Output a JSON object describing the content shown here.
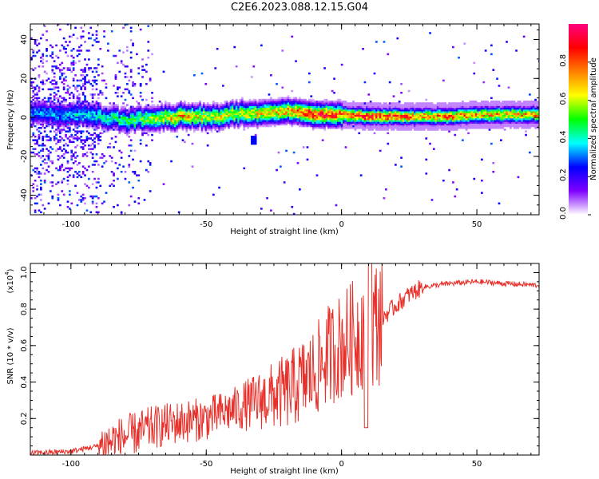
{
  "title": "C2E6.2023.088.12.15.G04",
  "colors": {
    "snr_line": "#e8302a",
    "axis": "#000000",
    "spectrogram_background": "#ffffff"
  },
  "chart_data": [
    {
      "type": "heatmap",
      "name": "spectrogram",
      "title": "",
      "xlabel": "Height of straight line (km)",
      "ylabel": "Frequency (Hz)",
      "xlim": [
        -115,
        73
      ],
      "ylim": [
        -50,
        48
      ],
      "xticks": [
        -100,
        -50,
        0,
        50
      ],
      "yticks": [
        -40,
        -20,
        0,
        20,
        40
      ],
      "colorbar": {
        "label": "Normalized spectral amplitude",
        "range": [
          0,
          1
        ],
        "ticks": [
          0.0,
          0.2,
          0.4,
          0.6,
          0.8
        ],
        "colormap": [
          "#ffffff",
          "#8000ff",
          "#0000ff",
          "#00ffff",
          "#00ff00",
          "#ffff00",
          "#ff8000",
          "#ff0000",
          "#ff0080"
        ]
      },
      "ridge": {
        "description_x": [
          -115,
          -100,
          -90,
          -80,
          -70,
          -60,
          -50,
          -40,
          -30,
          -20,
          -10,
          0,
          10,
          20,
          30,
          40,
          50,
          60,
          73
        ],
        "center_freq": [
          2,
          1,
          0,
          -2,
          -1,
          0,
          0,
          1,
          2,
          3,
          1,
          1,
          0,
          0,
          0,
          0,
          1,
          1,
          1
        ],
        "peak_amplitude": [
          0.3,
          0.35,
          0.4,
          0.45,
          0.55,
          0.7,
          0.6,
          0.6,
          0.65,
          0.7,
          0.85,
          0.8,
          0.85,
          0.8,
          0.75,
          0.75,
          0.7,
          0.7,
          0.7
        ]
      }
    },
    {
      "type": "line",
      "name": "snr",
      "title": "",
      "xlabel": "Height of straight line (km)",
      "ylabel": "SNR (10 * v/v)",
      "y_multiplier_label": "(x10",
      "y_multiplier_exp": "4",
      "xlim": [
        -115,
        73
      ],
      "ylim": [
        0,
        1.05
      ],
      "xticks": [
        -100,
        -50,
        0,
        50
      ],
      "yticks": [
        0.2,
        0.4,
        0.6,
        0.8,
        1.0
      ],
      "envelope_x": [
        -115,
        -100,
        -90,
        -80,
        -70,
        -60,
        -50,
        -40,
        -30,
        -20,
        -15,
        -10,
        -5,
        0,
        5,
        8,
        10,
        12,
        15,
        20,
        25,
        30,
        40,
        50,
        60,
        73
      ],
      "envelope_y": [
        0.01,
        0.02,
        0.05,
        0.1,
        0.15,
        0.18,
        0.2,
        0.25,
        0.3,
        0.35,
        0.4,
        0.45,
        0.55,
        0.6,
        0.65,
        0.7,
        0.65,
        0.72,
        0.75,
        0.82,
        0.88,
        0.92,
        0.94,
        0.95,
        0.94,
        0.93
      ]
    }
  ]
}
